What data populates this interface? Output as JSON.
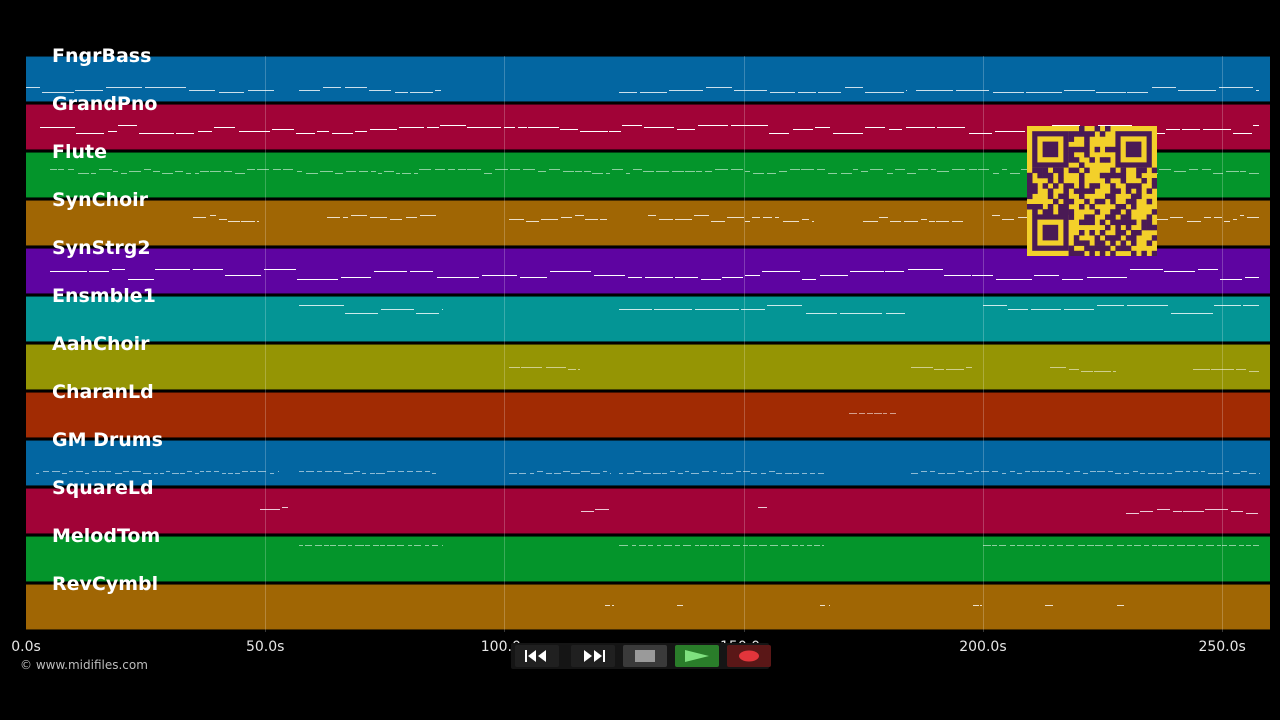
{
  "tracks": [
    {
      "name": "FngrBass",
      "color": "#0366a1"
    },
    {
      "name": "GrandPno",
      "color": "#a10337"
    },
    {
      "name": "Flute",
      "color": "#04952b"
    },
    {
      "name": "SynChoir",
      "color": "#a06604"
    },
    {
      "name": "SynStrg2",
      "color": "#5e04a1"
    },
    {
      "name": "Ensmble1",
      "color": "#049595"
    },
    {
      "name": "AahChoir",
      "color": "#959504"
    },
    {
      "name": "CharanLd",
      "color": "#a12b03"
    },
    {
      "name": "GM Drums",
      "color": "#0366a1"
    },
    {
      "name": "SquareLd",
      "color": "#a10337"
    },
    {
      "name": "MelodTom",
      "color": "#04952b"
    },
    {
      "name": "RevCymbl",
      "color": "#a06604"
    }
  ],
  "timeline": {
    "axis_max_seconds": 260,
    "ticks": [
      {
        "value": 0,
        "label": "0.0s"
      },
      {
        "value": 50,
        "label": "50.0s"
      },
      {
        "value": 100,
        "label": "100.0s"
      },
      {
        "value": 150,
        "label": "150.0s"
      },
      {
        "value": 200,
        "label": "200.0s"
      },
      {
        "value": 250,
        "label": "250.0s"
      }
    ]
  },
  "copyright": "© www.midifiles.com",
  "transport": {
    "rewind_icon": "rewind-icon",
    "fast_forward_icon": "fast-forward-icon",
    "stop_icon": "stop-icon",
    "play_icon": "play-icon",
    "record_icon": "record-icon"
  },
  "qr_color": "#f3d02a"
}
